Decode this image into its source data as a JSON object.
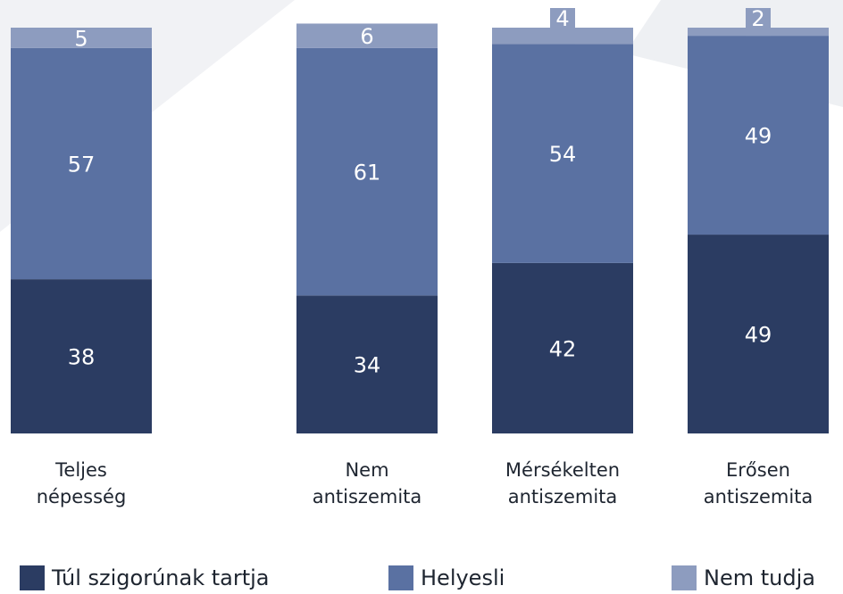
{
  "chart_data": {
    "type": "stacked_bar",
    "categories": [
      "Teljes népesség",
      "Nem antiszemita",
      "Mérsékelten antiszemita",
      "Erősen antiszemita"
    ],
    "series": [
      {
        "name": "Túl szigorúnak tartja",
        "color": "#2b3c62",
        "values": [
          38,
          34,
          42,
          49
        ]
      },
      {
        "name": "Helyesli",
        "color": "#5a71a2",
        "values": [
          57,
          61,
          54,
          49
        ]
      },
      {
        "name": "Nem tudja",
        "color": "#8d9cbf",
        "values": [
          5,
          6,
          4,
          2
        ]
      }
    ],
    "ylim": [
      0,
      100
    ]
  }
}
